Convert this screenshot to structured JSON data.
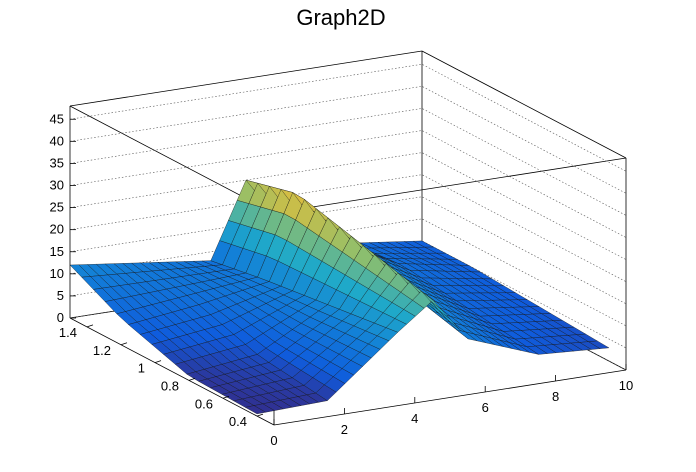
{
  "chart_data": {
    "type": "surface",
    "title": "Graph2D",
    "xlabel": "",
    "ylabel": "",
    "zlabel": "",
    "xlim": [
      0,
      10
    ],
    "ylim": [
      0.3,
      1.5
    ],
    "zlim": [
      0,
      48
    ],
    "x_ticks": [
      "0",
      "2",
      "4",
      "6",
      "8",
      "10"
    ],
    "y_ticks": [
      "0.4",
      "0.6",
      "0.8",
      "1",
      "1.2",
      "1.4"
    ],
    "z_ticks": [
      "0",
      "5",
      "10",
      "15",
      "20",
      "25",
      "30",
      "35",
      "40",
      "45"
    ],
    "palette": "kBird",
    "colors": {
      "low": "#352a87",
      "mid1": "#0f5cdd",
      "mid2": "#1fa9c9",
      "mid3": "#8ebf6c",
      "high": "#f9fb0e"
    },
    "surface_points": [
      {
        "x": 0,
        "y": 0.4,
        "z": 0.5
      },
      {
        "x": 0,
        "y": 0.8,
        "z": 1
      },
      {
        "x": 0,
        "y": 1.2,
        "z": 6
      },
      {
        "x": 0,
        "y": 1.5,
        "z": 12
      },
      {
        "x": 2,
        "y": 0.4,
        "z": 1
      },
      {
        "x": 2,
        "y": 0.8,
        "z": 3
      },
      {
        "x": 2,
        "y": 1.2,
        "z": 8
      },
      {
        "x": 2,
        "y": 1.5,
        "z": 10
      },
      {
        "x": 4,
        "y": 0.4,
        "z": 14
      },
      {
        "x": 4,
        "y": 0.8,
        "z": 12
      },
      {
        "x": 4,
        "y": 1.2,
        "z": 10
      },
      {
        "x": 4,
        "y": 1.5,
        "z": 8
      },
      {
        "x": 5,
        "y": 0.4,
        "z": 20
      },
      {
        "x": 5,
        "y": 0.8,
        "z": 24
      },
      {
        "x": 5,
        "y": 1.2,
        "z": 28
      },
      {
        "x": 5,
        "y": 1.5,
        "z": 25
      },
      {
        "x": 6,
        "y": 0.4,
        "z": 10
      },
      {
        "x": 6,
        "y": 0.8,
        "z": 14
      },
      {
        "x": 6,
        "y": 1.2,
        "z": 16
      },
      {
        "x": 6,
        "y": 1.5,
        "z": 14
      },
      {
        "x": 8,
        "y": 0.4,
        "z": 4
      },
      {
        "x": 8,
        "y": 0.8,
        "z": 6
      },
      {
        "x": 8,
        "y": 1.2,
        "z": 8
      },
      {
        "x": 8,
        "y": 1.5,
        "z": 7
      },
      {
        "x": 10,
        "y": 0.4,
        "z": 3
      },
      {
        "x": 10,
        "y": 0.8,
        "z": 4
      },
      {
        "x": 10,
        "y": 1.2,
        "z": 5
      },
      {
        "x": 10,
        "y": 1.5,
        "z": 5
      }
    ],
    "grid": true
  }
}
